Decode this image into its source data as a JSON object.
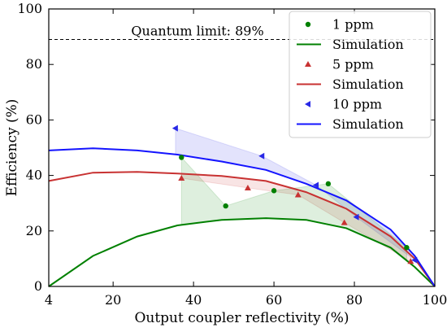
{
  "chart_data": {
    "type": "line",
    "xlabel": "Output coupler reflectivity (%)",
    "ylabel": "Efficiency (%)",
    "xlim": [
      4,
      100
    ],
    "ylim": [
      0,
      100
    ],
    "xticks": [
      4,
      20,
      40,
      60,
      80,
      100
    ],
    "yticks": [
      0,
      20,
      40,
      60,
      80,
      100
    ],
    "grid": false,
    "legend_position": "top-right",
    "annotations": [
      {
        "text": "Quantum limit: 89%",
        "y": 89,
        "style": "dashed"
      }
    ],
    "series": [
      {
        "name": "1 ppm",
        "kind": "scatter",
        "marker": "circle",
        "color": "#008000",
        "points": [
          [
            37,
            46.5
          ],
          [
            48,
            29
          ],
          [
            60,
            34.5
          ],
          [
            73.5,
            37
          ],
          [
            93,
            14
          ]
        ]
      },
      {
        "name": "Simulation",
        "kind": "line",
        "color": "#008000",
        "points": [
          [
            4,
            0
          ],
          [
            15,
            11
          ],
          [
            26,
            18
          ],
          [
            36,
            22
          ],
          [
            47,
            24
          ],
          [
            58,
            24.6
          ],
          [
            68,
            24
          ],
          [
            78,
            21
          ],
          [
            89,
            14
          ],
          [
            95,
            7
          ],
          [
            100,
            0
          ]
        ]
      },
      {
        "name": "5 ppm",
        "kind": "scatter",
        "marker": "triangle-up",
        "color": "#c83232",
        "points": [
          [
            37,
            39
          ],
          [
            53.5,
            35.5
          ],
          [
            66,
            33
          ],
          [
            77.5,
            23
          ],
          [
            94,
            9
          ]
        ]
      },
      {
        "name": "Simulation",
        "kind": "line",
        "color": "#c83232",
        "points": [
          [
            4,
            38
          ],
          [
            15,
            41
          ],
          [
            26,
            41.3
          ],
          [
            36,
            40.7
          ],
          [
            47,
            39.8
          ],
          [
            58,
            38
          ],
          [
            68,
            34
          ],
          [
            78,
            28
          ],
          [
            89,
            18
          ],
          [
            95,
            10
          ],
          [
            100,
            0
          ]
        ]
      },
      {
        "name": "10 ppm",
        "kind": "scatter",
        "marker": "triangle-left",
        "color": "#2828e6",
        "points": [
          [
            35.5,
            57
          ],
          [
            57,
            47
          ],
          [
            70.5,
            36.5
          ],
          [
            80.5,
            25
          ],
          [
            95,
            9.5
          ]
        ]
      },
      {
        "name": "Simulation",
        "kind": "line",
        "color": "#1414ff",
        "points": [
          [
            4,
            49
          ],
          [
            15,
            49.8
          ],
          [
            26,
            49
          ],
          [
            36,
            47.5
          ],
          [
            47,
            45
          ],
          [
            58,
            42
          ],
          [
            68,
            37
          ],
          [
            78,
            31
          ],
          [
            89,
            20.5
          ],
          [
            95,
            11
          ],
          [
            100,
            0
          ]
        ]
      }
    ],
    "fills": [
      {
        "between": [
          "10 ppm",
          "Simulation"
        ],
        "color": "#2828e6"
      },
      {
        "between": [
          "5 ppm",
          "Simulation"
        ],
        "color": "#c83232"
      },
      {
        "between": [
          "1 ppm",
          "Simulation"
        ],
        "color": "#008000"
      }
    ]
  }
}
